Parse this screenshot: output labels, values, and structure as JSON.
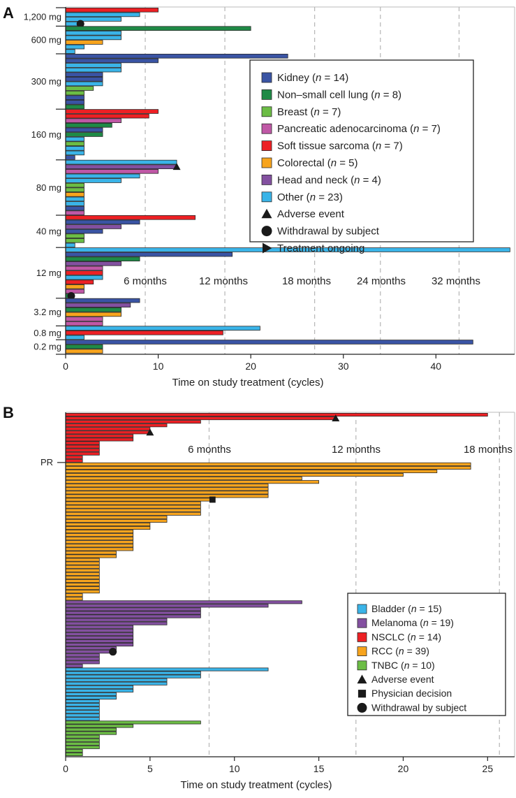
{
  "chart_data": [
    {
      "panel": "A",
      "type": "bar",
      "orientation": "horizontal",
      "xlabel": "Time on study treatment (cycles)",
      "xlim": [
        0,
        48.5
      ],
      "xticks": [
        0,
        10,
        20,
        30,
        40
      ],
      "grid": false,
      "legend_position": "right",
      "reference_lines": [
        {
          "label": "6 months",
          "x": 8.6
        },
        {
          "label": "12 months",
          "x": 17.2
        },
        {
          "label": "18 months",
          "x": 26.9
        },
        {
          "label": "24 months",
          "x": 34.0
        },
        {
          "label": "32 months",
          "x": 42.5
        }
      ],
      "categories": {
        "kid": {
          "label": "Kidney",
          "n": "14",
          "color": "#3a54a4"
        },
        "nsclc": {
          "label": "Non–small cell lung",
          "n": "8",
          "color": "#1f8a46"
        },
        "br": {
          "label": "Breast",
          "n": "7",
          "color": "#6cbd45"
        },
        "pan": {
          "label": "Pancreatic adenocarcinoma",
          "n": "7",
          "color": "#c058a6"
        },
        "sts": {
          "label": "Soft tissue sarcoma",
          "n": "7",
          "color": "#ed2024"
        },
        "crc": {
          "label": "Colorectal",
          "n": "5",
          "color": "#f7a41d"
        },
        "hn": {
          "label": "Head and neck",
          "n": "4",
          "color": "#8350a0"
        },
        "oth": {
          "label": "Other",
          "n": "23",
          "color": "#3ab4e8"
        }
      },
      "category_order": [
        "kid",
        "nsclc",
        "br",
        "pan",
        "sts",
        "crc",
        "hn",
        "oth"
      ],
      "markers": [
        {
          "key": "ae",
          "label": "Adverse event",
          "shape": "triangle-up"
        },
        {
          "key": "wd",
          "label": "Withdrawal by subject",
          "shape": "circle"
        },
        {
          "key": "ongoing",
          "label": "Treatment ongoing",
          "shape": "triangle-right"
        }
      ],
      "groups": [
        {
          "label": "1,200 mg",
          "bars": [
            [
              "sts",
              10
            ],
            [
              "oth",
              8
            ],
            [
              "oth",
              6
            ],
            [
              "oth",
              1.6,
              "wd"
            ]
          ]
        },
        {
          "label": "600 mg",
          "bars": [
            [
              "nsclc",
              20
            ],
            [
              "oth",
              6
            ],
            [
              "oth",
              6
            ],
            [
              "crc",
              4
            ],
            [
              "oth",
              2
            ],
            [
              "oth",
              1
            ]
          ]
        },
        {
          "label": "300 mg",
          "bars": [
            [
              "kid",
              24
            ],
            [
              "kid",
              10
            ],
            [
              "oth",
              6
            ],
            [
              "oth",
              6
            ],
            [
              "kid",
              4
            ],
            [
              "kid",
              4
            ],
            [
              "oth",
              4
            ],
            [
              "br",
              3
            ],
            [
              "br",
              2
            ],
            [
              "kid",
              2
            ],
            [
              "kid",
              2
            ],
            [
              "nsclc",
              2
            ]
          ]
        },
        {
          "label": "160 mg",
          "bars": [
            [
              "sts",
              10
            ],
            [
              "sts",
              9
            ],
            [
              "pan",
              6
            ],
            [
              "nsclc",
              5
            ],
            [
              "kid",
              4
            ],
            [
              "nsclc",
              4
            ],
            [
              "oth",
              2
            ],
            [
              "br",
              2
            ],
            [
              "oth",
              2
            ],
            [
              "oth",
              2
            ],
            [
              "kid",
              1
            ]
          ]
        },
        {
          "label": "80 mg",
          "bars": [
            [
              "oth",
              12
            ],
            [
              "hn",
              12,
              "ae"
            ],
            [
              "pan",
              10
            ],
            [
              "oth",
              8
            ],
            [
              "oth",
              6
            ],
            [
              "br",
              2
            ],
            [
              "br",
              2
            ],
            [
              "crc",
              2
            ],
            [
              "oth",
              2
            ],
            [
              "oth",
              2
            ],
            [
              "kid",
              2
            ],
            [
              "pan",
              2
            ]
          ]
        },
        {
          "label": "40 mg",
          "bars": [
            [
              "sts",
              14
            ],
            [
              "kid",
              8
            ],
            [
              "hn",
              6
            ],
            [
              "kid",
              4
            ],
            [
              "br",
              2
            ],
            [
              "br",
              2
            ],
            [
              "oth",
              1
            ]
          ]
        },
        {
          "label": "12 mg",
          "bars": [
            [
              "oth",
              48
            ],
            [
              "kid",
              18
            ],
            [
              "nsclc",
              8
            ],
            [
              "hn",
              6
            ],
            [
              "pan",
              4
            ],
            [
              "sts",
              4
            ],
            [
              "oth",
              4
            ],
            [
              "sts",
              3
            ],
            [
              "crc",
              2
            ],
            [
              "pan",
              2
            ],
            [
              "nsclc",
              0.6,
              "wd"
            ]
          ]
        },
        {
          "label": "3.2 mg",
          "bars": [
            [
              "kid",
              8
            ],
            [
              "hn",
              7
            ],
            [
              "nsclc",
              6
            ],
            [
              "crc",
              6
            ],
            [
              "pan",
              4
            ],
            [
              "pan",
              4
            ]
          ]
        },
        {
          "label": "0.8 mg",
          "bars": [
            [
              "oth",
              21
            ],
            [
              "sts",
              17
            ],
            [
              "oth",
              2
            ]
          ]
        },
        {
          "label": "0.2 mg",
          "bars": [
            [
              "kid",
              44
            ],
            [
              "nsclc",
              4
            ],
            [
              "crc",
              4
            ]
          ]
        }
      ]
    },
    {
      "panel": "B",
      "type": "bar",
      "orientation": "horizontal",
      "xlabel": "Time on study treatment (cycles)",
      "xlim": [
        0,
        26.6
      ],
      "xticks": [
        0,
        5,
        10,
        15,
        20,
        25
      ],
      "grid": false,
      "legend_position": "bottom-right",
      "reference_lines": [
        {
          "label": "6 months",
          "x": 8.5
        },
        {
          "label": "12 months",
          "x": 17.2
        },
        {
          "label": "18 months",
          "x": 25.7
        }
      ],
      "categories": {
        "bla": {
          "label": "Bladder",
          "n": "15",
          "color": "#3ab4e8"
        },
        "mel": {
          "label": "Melanoma",
          "n": "19",
          "color": "#8350a0"
        },
        "nsclc": {
          "label": "NSCLC",
          "n": "14",
          "color": "#ed2024"
        },
        "rcc": {
          "label": "RCC",
          "n": "39",
          "color": "#f7a41d"
        },
        "tnbc": {
          "label": "TNBC",
          "n": "10",
          "color": "#6cbd45"
        }
      },
      "category_order": [
        "bla",
        "mel",
        "nsclc",
        "rcc",
        "tnbc"
      ],
      "markers": [
        {
          "key": "ae",
          "label": "Adverse event",
          "shape": "triangle-up"
        },
        {
          "key": "pd",
          "label": "Physician decision",
          "shape": "square"
        },
        {
          "key": "wd",
          "label": "Withdrawal by subject",
          "shape": "circle"
        }
      ],
      "y_annotation": {
        "label": "PR",
        "after_bar": 14
      },
      "bars": [
        [
          "nsclc",
          25
        ],
        [
          "nsclc",
          16,
          "ae"
        ],
        [
          "nsclc",
          8
        ],
        [
          "nsclc",
          6
        ],
        [
          "nsclc",
          5
        ],
        [
          "nsclc",
          5,
          "ae"
        ],
        [
          "nsclc",
          4
        ],
        [
          "nsclc",
          4
        ],
        [
          "nsclc",
          2
        ],
        [
          "nsclc",
          2
        ],
        [
          "nsclc",
          2
        ],
        [
          "nsclc",
          2
        ],
        [
          "nsclc",
          1
        ],
        [
          "nsclc",
          1
        ],
        [
          "rcc",
          24
        ],
        [
          "rcc",
          24
        ],
        [
          "rcc",
          22
        ],
        [
          "rcc",
          20
        ],
        [
          "rcc",
          14
        ],
        [
          "rcc",
          15
        ],
        [
          "rcc",
          12
        ],
        [
          "rcc",
          12
        ],
        [
          "rcc",
          12
        ],
        [
          "rcc",
          12
        ],
        [
          "rcc",
          8.7,
          "pd"
        ],
        [
          "rcc",
          8
        ],
        [
          "rcc",
          8
        ],
        [
          "rcc",
          8
        ],
        [
          "rcc",
          8
        ],
        [
          "rcc",
          6
        ],
        [
          "rcc",
          6
        ],
        [
          "rcc",
          5
        ],
        [
          "rcc",
          5
        ],
        [
          "rcc",
          4
        ],
        [
          "rcc",
          4
        ],
        [
          "rcc",
          4
        ],
        [
          "rcc",
          4
        ],
        [
          "rcc",
          4
        ],
        [
          "rcc",
          4
        ],
        [
          "rcc",
          3
        ],
        [
          "rcc",
          3
        ],
        [
          "rcc",
          2
        ],
        [
          "rcc",
          2
        ],
        [
          "rcc",
          2
        ],
        [
          "rcc",
          2
        ],
        [
          "rcc",
          2
        ],
        [
          "rcc",
          2
        ],
        [
          "rcc",
          2
        ],
        [
          "rcc",
          2
        ],
        [
          "rcc",
          2
        ],
        [
          "rcc",
          2
        ],
        [
          "rcc",
          1
        ],
        [
          "rcc",
          1
        ],
        [
          "mel",
          14
        ],
        [
          "mel",
          12
        ],
        [
          "mel",
          8
        ],
        [
          "mel",
          8
        ],
        [
          "mel",
          8
        ],
        [
          "mel",
          6
        ],
        [
          "mel",
          6
        ],
        [
          "mel",
          4
        ],
        [
          "mel",
          4
        ],
        [
          "mel",
          4
        ],
        [
          "mel",
          4
        ],
        [
          "mel",
          4
        ],
        [
          "mel",
          4
        ],
        [
          "mel",
          3
        ],
        [
          "mel",
          2.8,
          "wd"
        ],
        [
          "mel",
          2
        ],
        [
          "mel",
          2
        ],
        [
          "mel",
          2
        ],
        [
          "mel",
          1
        ],
        [
          "bla",
          12
        ],
        [
          "bla",
          8
        ],
        [
          "bla",
          8
        ],
        [
          "bla",
          6
        ],
        [
          "bla",
          6
        ],
        [
          "bla",
          4
        ],
        [
          "bla",
          4
        ],
        [
          "bla",
          3
        ],
        [
          "bla",
          3
        ],
        [
          "bla",
          2
        ],
        [
          "bla",
          2
        ],
        [
          "bla",
          2
        ],
        [
          "bla",
          2
        ],
        [
          "bla",
          2
        ],
        [
          "bla",
          2
        ],
        [
          "tnbc",
          8
        ],
        [
          "tnbc",
          4
        ],
        [
          "tnbc",
          3
        ],
        [
          "tnbc",
          3
        ],
        [
          "tnbc",
          2
        ],
        [
          "tnbc",
          2
        ],
        [
          "tnbc",
          2
        ],
        [
          "tnbc",
          2
        ],
        [
          "tnbc",
          1
        ],
        [
          "tnbc",
          1
        ]
      ]
    }
  ]
}
